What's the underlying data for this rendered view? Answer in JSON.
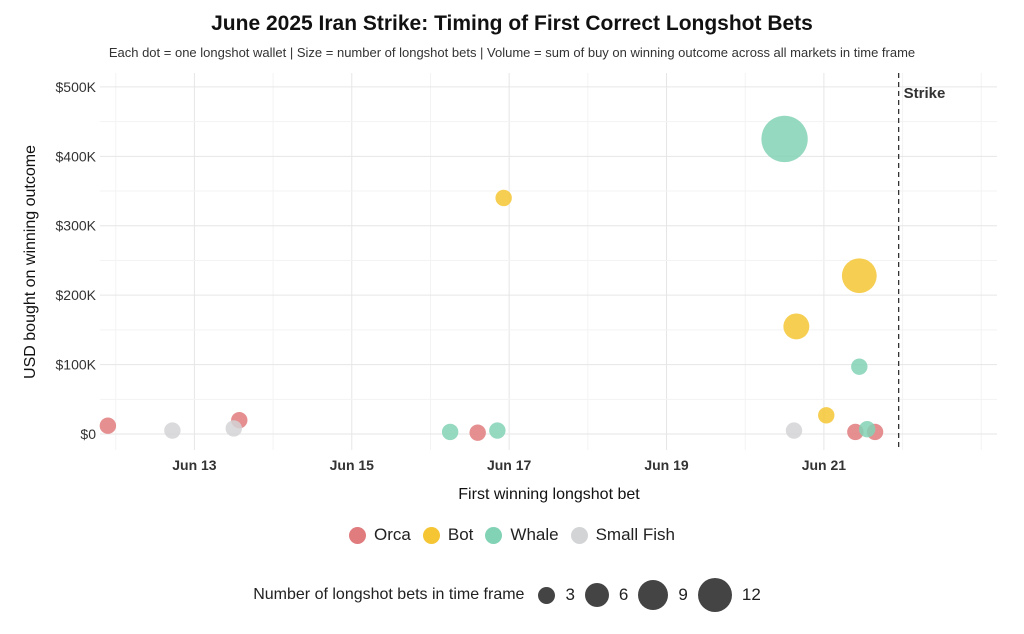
{
  "chart_data": {
    "type": "scatter",
    "title": "June 2025 Iran Strike: Timing of First Correct Longshot Bets",
    "subtitle": "Each dot = one longshot wallet  |  Size = number of longshot bets  |  Volume = sum of buy on winning outcome across all markets in time frame",
    "xlabel": "First winning longshot bet",
    "ylabel": "USD bought on winning outcome",
    "x_ticks": [
      {
        "day": 13,
        "label": "Jun 13"
      },
      {
        "day": 15,
        "label": "Jun 15"
      },
      {
        "day": 17,
        "label": "Jun 17"
      },
      {
        "day": 19,
        "label": "Jun 19"
      },
      {
        "day": 21,
        "label": "Jun 21"
      }
    ],
    "xlim": [
      11.8,
      23.2
    ],
    "y_ticks": [
      {
        "value": 0,
        "label": "$0"
      },
      {
        "value": 100000,
        "label": "$100K"
      },
      {
        "value": 200000,
        "label": "$200K"
      },
      {
        "value": 300000,
        "label": "$300K"
      },
      {
        "value": 400000,
        "label": "$400K"
      },
      {
        "value": 500000,
        "label": "$500K"
      }
    ],
    "ylim": [
      -23000,
      520000
    ],
    "strike": {
      "day": 21.95,
      "label": "Strike"
    },
    "grid": true,
    "legend_position": "bottom",
    "categories": [
      {
        "key": "Orca",
        "name": "Orca",
        "color": "#e07b7e"
      },
      {
        "key": "Bot",
        "name": "Bot",
        "color": "#f5c534"
      },
      {
        "key": "Whale",
        "name": "Whale",
        "color": "#82d2b5"
      },
      {
        "key": "Small Fish",
        "name": "Small Fish",
        "color": "#d3d4d6"
      }
    ],
    "size_legend": {
      "title": "Number of longshot bets in time frame",
      "values": [
        3,
        6,
        9,
        12
      ]
    },
    "points": [
      {
        "x": 11.9,
        "y": 12000,
        "category": "Orca",
        "bets": 2
      },
      {
        "x": 13.57,
        "y": 20000,
        "category": "Orca",
        "bets": 2
      },
      {
        "x": 16.6,
        "y": 2000,
        "category": "Orca",
        "bets": 2
      },
      {
        "x": 21.4,
        "y": 3000,
        "category": "Orca",
        "bets": 2
      },
      {
        "x": 21.65,
        "y": 3000,
        "category": "Orca",
        "bets": 2
      },
      {
        "x": 16.93,
        "y": 340000,
        "category": "Bot",
        "bets": 2
      },
      {
        "x": 20.65,
        "y": 155000,
        "category": "Bot",
        "bets": 5
      },
      {
        "x": 21.03,
        "y": 27000,
        "category": "Bot",
        "bets": 2
      },
      {
        "x": 21.45,
        "y": 228000,
        "category": "Bot",
        "bets": 9
      },
      {
        "x": 16.25,
        "y": 3000,
        "category": "Whale",
        "bets": 2
      },
      {
        "x": 16.85,
        "y": 5000,
        "category": "Whale",
        "bets": 2
      },
      {
        "x": 20.5,
        "y": 425000,
        "category": "Whale",
        "bets": 16
      },
      {
        "x": 21.45,
        "y": 97000,
        "category": "Whale",
        "bets": 2
      },
      {
        "x": 21.55,
        "y": 7000,
        "category": "Whale",
        "bets": 2
      },
      {
        "x": 12.72,
        "y": 5000,
        "category": "Small Fish",
        "bets": 2
      },
      {
        "x": 13.5,
        "y": 8000,
        "category": "Small Fish",
        "bets": 2
      },
      {
        "x": 20.62,
        "y": 5000,
        "category": "Small Fish",
        "bets": 2
      }
    ]
  }
}
